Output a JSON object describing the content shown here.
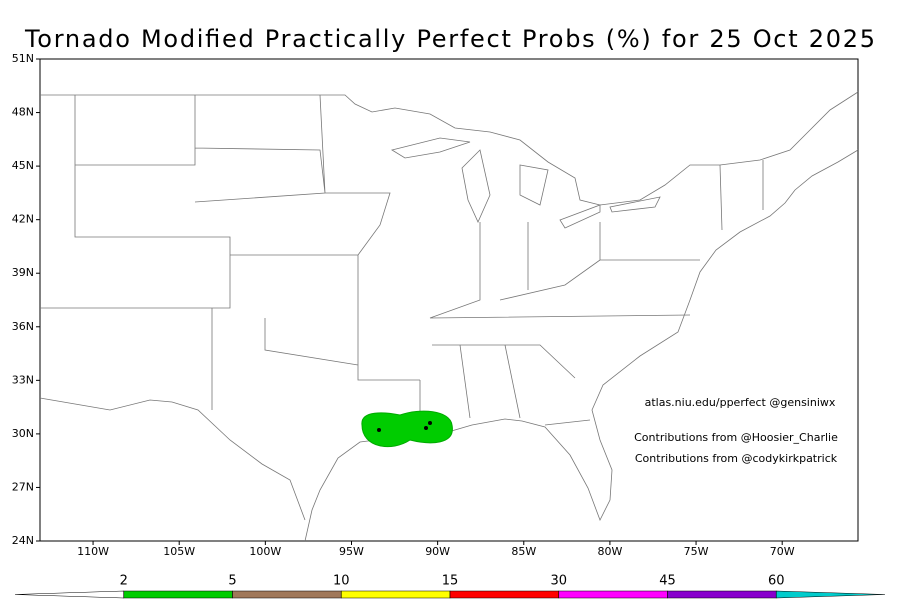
{
  "title": "Tornado Modified Practically Perfect Probs (%) for 25 Oct 2025",
  "map": {
    "lon_range": [
      -113.08,
      -65.6
    ],
    "lat_range": [
      24,
      51
    ],
    "lat_ticks": [
      {
        "value": 51,
        "label": "51N"
      },
      {
        "value": 48,
        "label": "48N"
      },
      {
        "value": 45,
        "label": "45N"
      },
      {
        "value": 42,
        "label": "42N"
      },
      {
        "value": 39,
        "label": "39N"
      },
      {
        "value": 36,
        "label": "36N"
      },
      {
        "value": 33,
        "label": "33N"
      },
      {
        "value": 30,
        "label": "30N"
      },
      {
        "value": 27,
        "label": "27N"
      },
      {
        "value": 24,
        "label": "24N"
      }
    ],
    "lon_ticks": [
      {
        "value": -110,
        "label": "110W"
      },
      {
        "value": -105,
        "label": "105W"
      },
      {
        "value": -100,
        "label": "100W"
      },
      {
        "value": -95,
        "label": "95W"
      },
      {
        "value": -90,
        "label": "90W"
      },
      {
        "value": -85,
        "label": "85W"
      },
      {
        "value": -80,
        "label": "80W"
      },
      {
        "value": -75,
        "label": "75W"
      },
      {
        "value": -70,
        "label": "70W"
      }
    ]
  },
  "annotations": [
    "atlas.niu.edu/pperfect @gensiniwx",
    "Contributions from @Hoosier_Charlie",
    "Contributions from @codykirkpatrick"
  ],
  "colorbar": {
    "levels": [
      2,
      5,
      10,
      15,
      30,
      45,
      60
    ],
    "colors": [
      "#ffffff",
      "#00cc00",
      "#a0785a",
      "#ffff00",
      "#ff0000",
      "#ff00ff",
      "#8800cc",
      "#00cccc"
    ]
  }
}
